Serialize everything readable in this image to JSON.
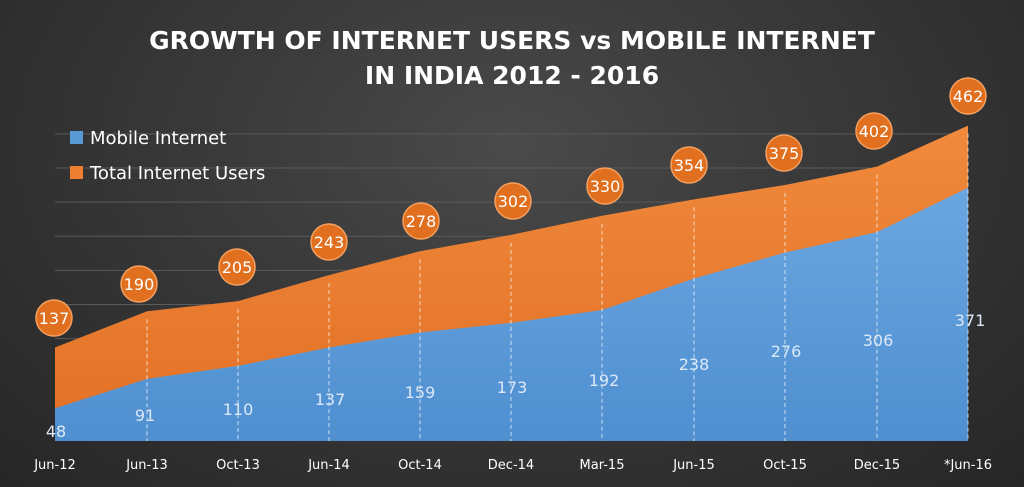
{
  "chart_data": {
    "type": "area",
    "title_line1": "GROWTH OF INTERNET USERS vs MOBILE INTERNET",
    "title_line2": "IN INDIA 2012 - 2016",
    "categories": [
      "Jun-12",
      "Jun-13",
      "Oct-13",
      "Jun-14",
      "Oct-14",
      "Dec-14",
      "Mar-15",
      "Jun-15",
      "Oct-15",
      "Dec-15",
      "*Jun-16"
    ],
    "series": [
      {
        "name": "Mobile Internet",
        "color": "#5b9bd5",
        "values": [
          48,
          91,
          110,
          137,
          159,
          173,
          192,
          238,
          276,
          306,
          371
        ]
      },
      {
        "name": "Total Internet Users",
        "color": "#ed7d31",
        "values": [
          137,
          190,
          205,
          243,
          278,
          302,
          330,
          354,
          375,
          402,
          462
        ]
      }
    ],
    "ylim": [
      0,
      462
    ],
    "grid": true,
    "legend_position": "top-left",
    "xlabel": "",
    "ylabel": ""
  }
}
